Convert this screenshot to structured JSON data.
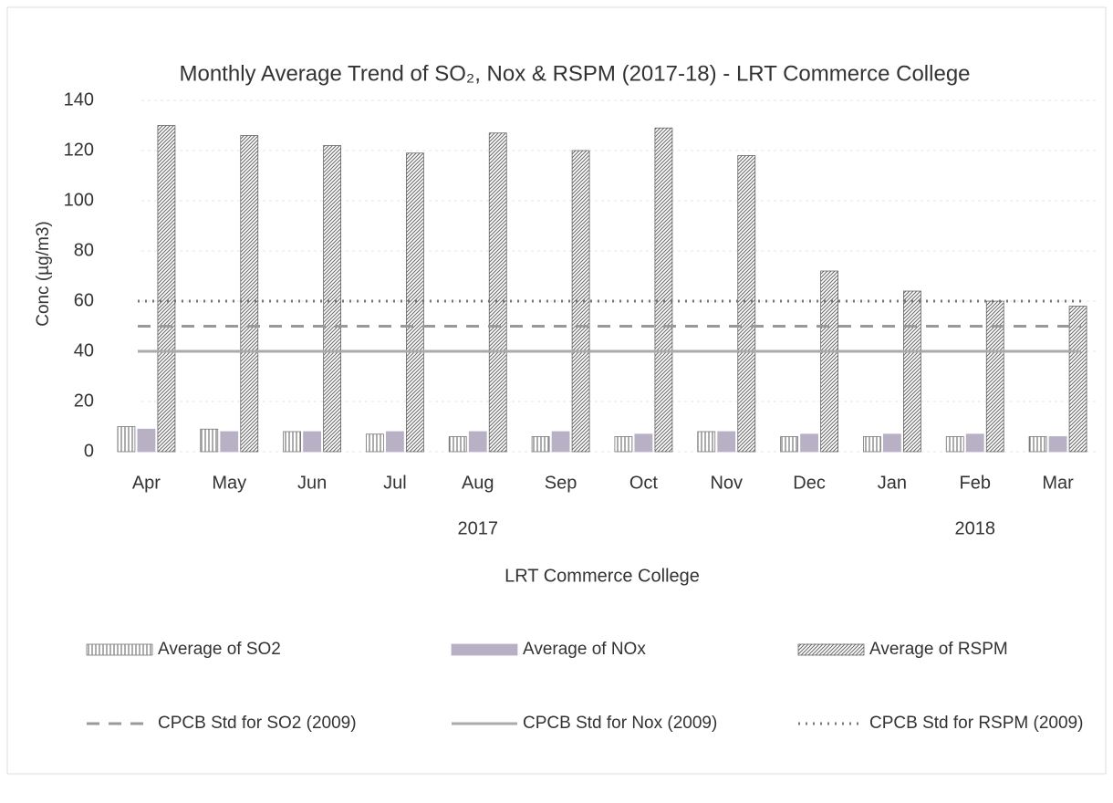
{
  "chart_data": {
    "type": "bar",
    "title": "Monthly Average Trend of SO₂, Nox & RSPM (2017-18) - LRT Commerce College",
    "y_label": "Conc (µg/m3)",
    "x_label": "LRT Commerce College",
    "categories": [
      "Apr",
      "May",
      "Jun",
      "Jul",
      "Aug",
      "Sep",
      "Oct",
      "Nov",
      "Dec",
      "Jan",
      "Feb",
      "Mar"
    ],
    "x_groups": [
      {
        "label": "2017",
        "count": 9
      },
      {
        "label": "2018",
        "count": 3
      }
    ],
    "ylim": [
      0,
      140
    ],
    "yticks": [
      0,
      20,
      40,
      60,
      80,
      100,
      120,
      140
    ],
    "grid": true,
    "legend": "bottom",
    "series": [
      {
        "name": "Average of SO2",
        "style": "bar",
        "fill": "vertical",
        "color": "#777777",
        "values": [
          10,
          9,
          8,
          7,
          6,
          6,
          6,
          8,
          6,
          6,
          6,
          6
        ]
      },
      {
        "name": "Average of NOx",
        "style": "bar",
        "fill": "solid",
        "color": "#b8b0c4",
        "values": [
          9,
          8,
          8,
          8,
          8,
          8,
          7,
          8,
          7,
          7,
          7,
          6
        ]
      },
      {
        "name": "Average of RSPM",
        "style": "bar",
        "fill": "diagonal",
        "color": "#666666",
        "values": [
          130,
          126,
          122,
          119,
          127,
          120,
          129,
          118,
          72,
          64,
          60,
          58
        ]
      },
      {
        "name": "CPCB Std for SO2 (2009)",
        "style": "line",
        "dash": "dashed",
        "color": "#999999",
        "values": [
          50,
          50,
          50,
          50,
          50,
          50,
          50,
          50,
          50,
          50,
          50,
          50
        ]
      },
      {
        "name": "CPCB Std for Nox (2009)",
        "style": "line",
        "dash": "solid",
        "color": "#aaaaaa",
        "values": [
          40,
          40,
          40,
          40,
          40,
          40,
          40,
          40,
          40,
          40,
          40,
          40
        ]
      },
      {
        "name": "CPCB Std for RSPM (2009)",
        "style": "line",
        "dash": "dotted",
        "color": "#777777",
        "values": [
          60,
          60,
          60,
          60,
          60,
          60,
          60,
          60,
          60,
          60,
          60,
          60
        ]
      }
    ]
  }
}
